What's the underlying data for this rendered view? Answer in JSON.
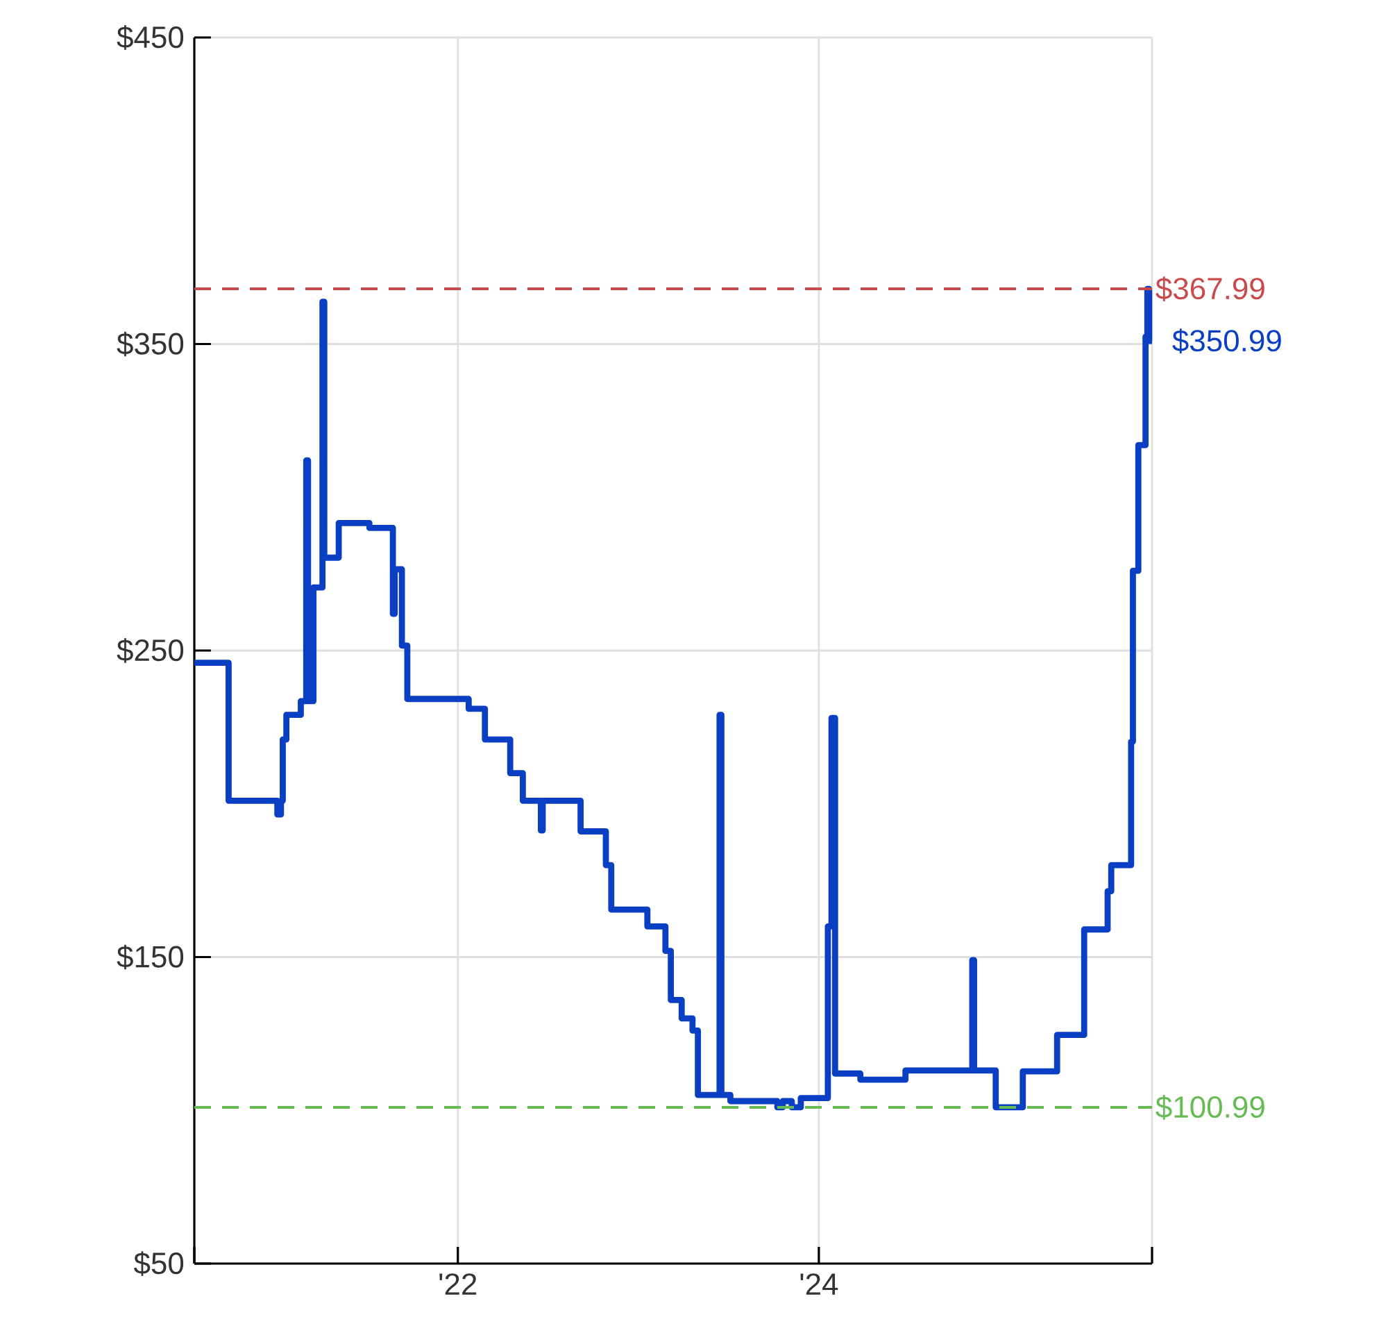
{
  "chart_data": {
    "type": "step",
    "marker": "none",
    "grid": true,
    "xlim": [
      2020.54,
      2025.846
    ],
    "xticks": [
      {
        "value": 2020.54,
        "label": null
      },
      {
        "value": 2022,
        "label": "'22"
      },
      {
        "value": 2024,
        "label": "'24"
      },
      {
        "value": 2025.846,
        "label": null
      }
    ],
    "ylim": [
      50,
      450
    ],
    "yticks": [
      {
        "value": 50,
        "label": "$50"
      },
      {
        "value": 150,
        "label": "$150"
      },
      {
        "value": 250,
        "label": "$250"
      },
      {
        "value": 350,
        "label": "$350"
      },
      {
        "value": 450,
        "label": "$450"
      }
    ],
    "series": [
      {
        "color": "#0a3fc4",
        "x": [
          2020.54,
          2020.73,
          2021.0,
          2021.02,
          2021.03,
          2021.05,
          2021.13,
          2021.16,
          2021.17,
          2021.2,
          2021.25,
          2021.26,
          2021.34,
          2021.51,
          2021.64,
          2021.65,
          2021.69,
          2021.72,
          2022.06,
          2022.15,
          2022.29,
          2022.36,
          2022.46,
          2022.47,
          2022.68,
          2022.82,
          2022.85,
          2023.05,
          2023.15,
          2023.18,
          2023.24,
          2023.3,
          2023.33,
          2023.45,
          2023.46,
          2023.51,
          2023.77,
          2023.8,
          2023.85,
          2023.9,
          2024.05,
          2024.07,
          2024.09,
          2024.23,
          2024.48,
          2024.85,
          2024.86,
          2024.98,
          2025.13,
          2025.32,
          2025.47,
          2025.6,
          2025.62,
          2025.73,
          2025.74,
          2025.77,
          2025.81,
          2025.82,
          2025.83,
          2025.846
        ],
        "values": [
          246,
          201,
          196.5,
          201,
          221,
          229,
          233.5,
          312,
          233.5,
          270.6,
          363.8,
          280.3,
          291.6,
          290,
          262,
          276.5,
          251.6,
          234.2,
          231,
          221,
          210,
          201,
          191.3,
          201,
          191,
          180,
          165.5,
          160,
          152,
          136,
          130,
          126,
          105,
          229,
          105,
          103,
          101,
          103,
          101,
          104,
          160,
          228,
          112,
          110,
          113,
          149,
          113,
          100.99,
          112.7,
          124.6,
          159,
          171.5,
          180,
          220.3,
          276,
          317,
          352.4,
          367.99,
          350.99,
          350.99
        ]
      }
    ],
    "ref_lines": [
      {
        "axis": "y",
        "value": 367.99,
        "label": "$367.99",
        "color": "#c94a4a",
        "line_style": "dashed"
      },
      {
        "axis": "y",
        "value": 100.99,
        "label": "$100.99",
        "color": "#66bb55",
        "line_style": "dashed"
      }
    ],
    "annotations": [
      {
        "text": "$350.99",
        "x": 2025.846,
        "y": 350.99
      }
    ]
  }
}
